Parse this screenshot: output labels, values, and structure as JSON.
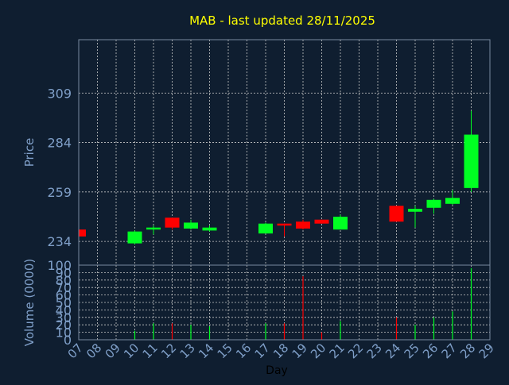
{
  "title": "MAB - last updated 28/11/2025",
  "colors": {
    "background": "#0f1e30",
    "plot_background": "#0f1e30",
    "grid": "#c8c8c8",
    "frame": "#7a8aa0",
    "axis_text": "#7f9fc8",
    "title": "#ffff00",
    "up": "#00ff22",
    "down": "#ff0000"
  },
  "chart_data": [
    {
      "type": "candlestick",
      "ylabel": "Price",
      "ylim": [
        222,
        336
      ],
      "yticks": [
        "234",
        "259",
        "284",
        "309"
      ],
      "grid": true,
      "x_days": [
        "07",
        "08",
        "09",
        "10",
        "11",
        "12",
        "13",
        "14",
        "15",
        "16",
        "17",
        "18",
        "19",
        "20",
        "21",
        "22",
        "23",
        "24",
        "25",
        "26",
        "27",
        "28",
        "29"
      ],
      "candles": [
        {
          "day": "07",
          "open": 240,
          "close": 236.5,
          "high": 240,
          "low": 236.5
        },
        {
          "day": "10",
          "open": 233,
          "close": 239,
          "high": 239.5,
          "low": 232.5
        },
        {
          "day": "11",
          "open": 240,
          "close": 241,
          "high": 242,
          "low": 237.5
        },
        {
          "day": "12",
          "open": 246,
          "close": 241,
          "high": 246,
          "low": 240
        },
        {
          "day": "13",
          "open": 240.5,
          "close": 243.5,
          "high": 245,
          "low": 240
        },
        {
          "day": "14",
          "open": 239.5,
          "close": 241,
          "high": 242,
          "low": 239
        },
        {
          "day": "17",
          "open": 238,
          "close": 243,
          "high": 243.5,
          "low": 238
        },
        {
          "day": "18",
          "open": 243,
          "close": 242,
          "high": 243,
          "low": 236.5
        },
        {
          "day": "19",
          "open": 244,
          "close": 240.5,
          "high": 245,
          "low": 240
        },
        {
          "day": "20",
          "open": 245,
          "close": 243,
          "high": 245,
          "low": 243
        },
        {
          "day": "21",
          "open": 240,
          "close": 246.5,
          "high": 247.5,
          "low": 240
        },
        {
          "day": "24",
          "open": 252,
          "close": 244,
          "high": 252,
          "low": 244
        },
        {
          "day": "25",
          "open": 249,
          "close": 250.5,
          "high": 252,
          "low": 241
        },
        {
          "day": "26",
          "open": 251,
          "close": 255,
          "high": 255.5,
          "low": 248
        },
        {
          "day": "27",
          "open": 253,
          "close": 256,
          "high": 260,
          "low": 252.5
        },
        {
          "day": "28",
          "open": 261,
          "close": 288,
          "high": 300,
          "low": 259
        }
      ]
    },
    {
      "type": "bar",
      "ylabel": "Volume (0000)",
      "xlabel": "Day",
      "ylim": [
        0,
        100
      ],
      "yticks": [
        "0",
        "10",
        "20",
        "30",
        "40",
        "50",
        "60",
        "70",
        "80",
        "90",
        "100"
      ],
      "grid": true,
      "bars": [
        {
          "day": "10",
          "value": 12,
          "direction": "up"
        },
        {
          "day": "11",
          "value": 22,
          "direction": "up"
        },
        {
          "day": "12",
          "value": 22,
          "direction": "down"
        },
        {
          "day": "13",
          "value": 20,
          "direction": "up"
        },
        {
          "day": "14",
          "value": 18,
          "direction": "up"
        },
        {
          "day": "17",
          "value": 22,
          "direction": "up"
        },
        {
          "day": "18",
          "value": 22,
          "direction": "down"
        },
        {
          "day": "19",
          "value": 85,
          "direction": "down"
        },
        {
          "day": "20",
          "value": 10,
          "direction": "down"
        },
        {
          "day": "21",
          "value": 25,
          "direction": "up"
        },
        {
          "day": "24",
          "value": 30,
          "direction": "down"
        },
        {
          "day": "25",
          "value": 20,
          "direction": "up"
        },
        {
          "day": "26",
          "value": 30,
          "direction": "up"
        },
        {
          "day": "27",
          "value": 38,
          "direction": "up"
        },
        {
          "day": "28",
          "value": 96,
          "direction": "up"
        }
      ]
    }
  ]
}
